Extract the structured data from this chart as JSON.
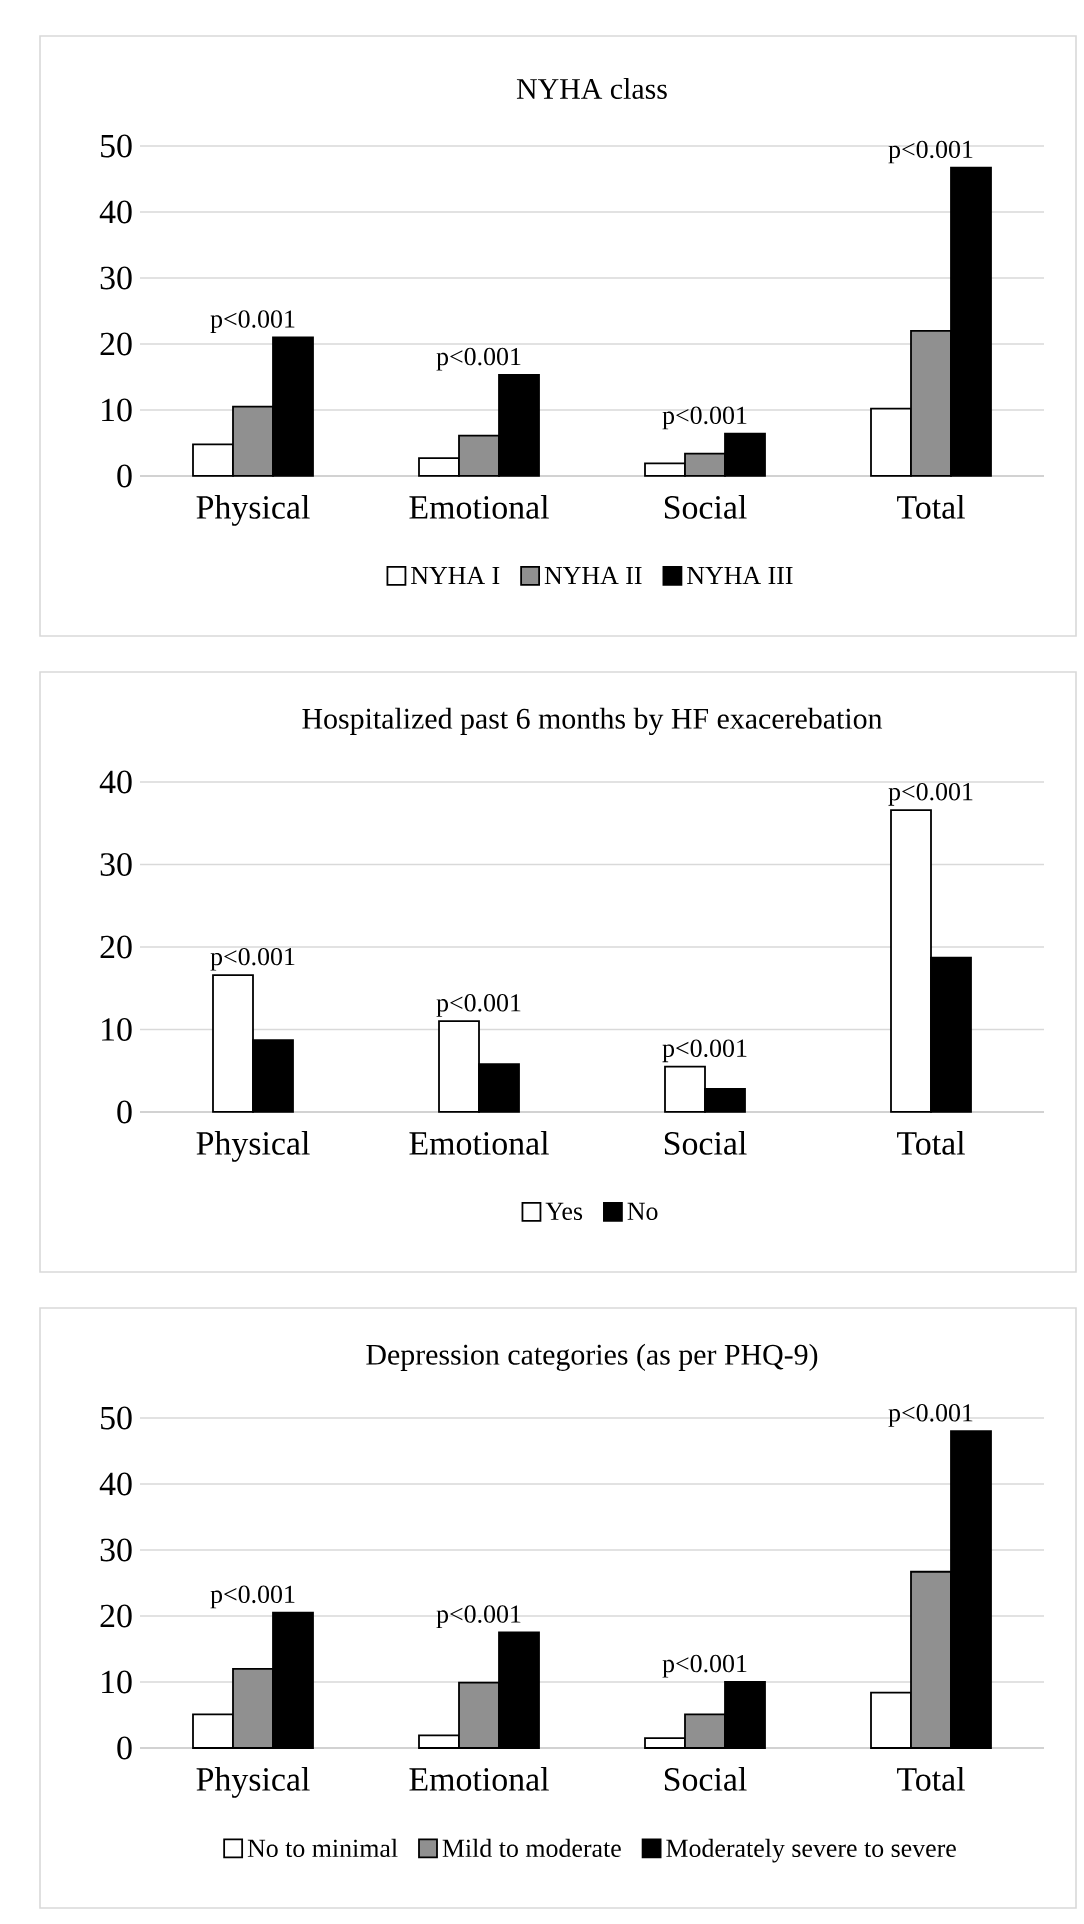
{
  "chart_data": [
    {
      "type": "bar",
      "title": "NYHA class",
      "categories": [
        "Physical",
        "Emotional",
        "Social",
        "Total"
      ],
      "ylim": [
        0,
        50
      ],
      "yticks": [
        0,
        10,
        20,
        30,
        40,
        50
      ],
      "grid": "y",
      "legend": "bottom",
      "series": [
        {
          "name": "NYHA I",
          "color": "#ffffff",
          "values": [
            4.8,
            2.7,
            1.9,
            10.2
          ]
        },
        {
          "name": "NYHA II",
          "color": "#909090",
          "values": [
            10.5,
            6.1,
            3.4,
            22
          ]
        },
        {
          "name": "NYHA III",
          "color": "#000000",
          "values": [
            21,
            15.3,
            6.4,
            46.7
          ]
        }
      ],
      "annotations": [
        "p<0.001",
        "p<0.001",
        "p<0.001",
        "p<0.001"
      ]
    },
    {
      "type": "bar",
      "title": "Hospitalized past 6 months by HF exacerebation",
      "categories": [
        "Physical",
        "Emotional",
        "Social",
        "Total"
      ],
      "ylim": [
        0,
        40
      ],
      "yticks": [
        0,
        10,
        20,
        30,
        40
      ],
      "grid": "y",
      "legend": "bottom",
      "series": [
        {
          "name": "Yes",
          "color": "#ffffff",
          "values": [
            16.6,
            11,
            5.5,
            36.6
          ]
        },
        {
          "name": "No",
          "color": "#000000",
          "values": [
            8.7,
            5.8,
            2.8,
            18.7
          ]
        }
      ],
      "annotations": [
        "p<0.001",
        "p<0.001",
        "p<0.001",
        "p<0.001"
      ]
    },
    {
      "type": "bar",
      "title": "Depression categories (as per PHQ-9)",
      "categories": [
        "Physical",
        "Emotional",
        "Social",
        "Total"
      ],
      "ylim": [
        0,
        50
      ],
      "yticks": [
        0,
        10,
        20,
        30,
        40,
        50
      ],
      "grid": "y",
      "legend": "bottom",
      "series": [
        {
          "name": "No to minimal",
          "color": "#ffffff",
          "values": [
            5.1,
            1.9,
            1.5,
            8.4
          ]
        },
        {
          "name": "Mild to moderate",
          "color": "#909090",
          "values": [
            12,
            9.9,
            5.1,
            26.7
          ]
        },
        {
          "name": "Moderately severe to severe",
          "color": "#000000",
          "values": [
            20.5,
            17.5,
            10,
            48
          ]
        }
      ],
      "annotations": [
        "p<0.001",
        "p<0.001",
        "p<0.001",
        "p<0.001"
      ]
    }
  ]
}
